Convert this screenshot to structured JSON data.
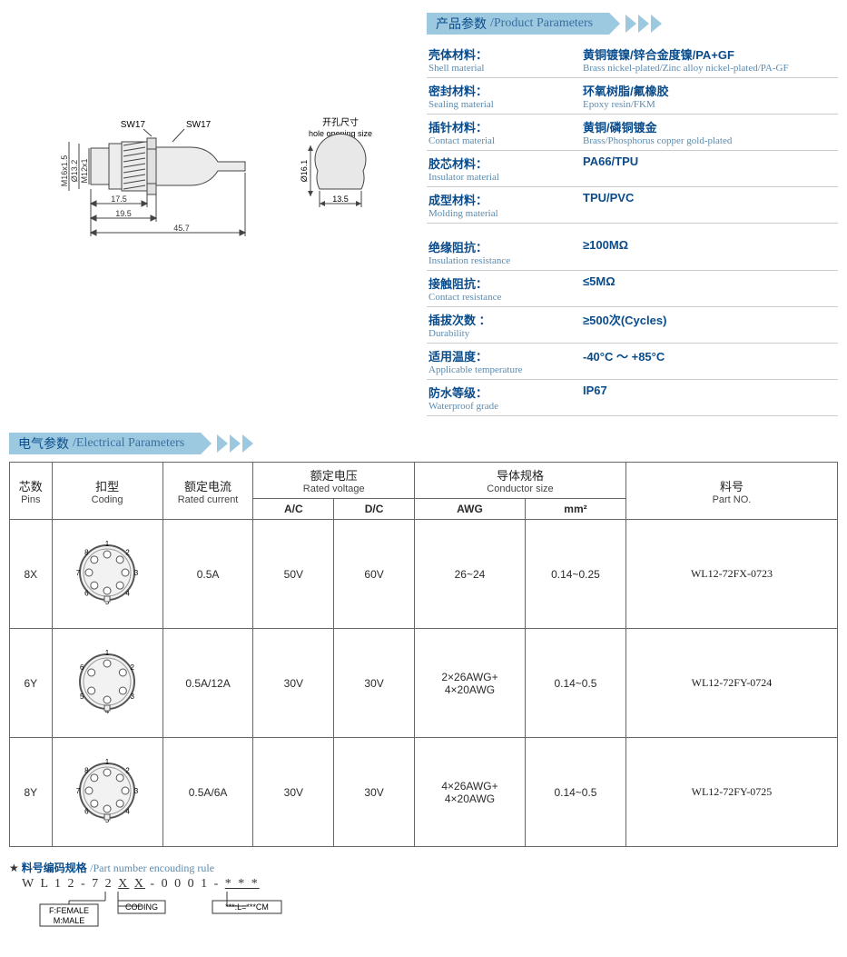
{
  "sections": {
    "product_params": {
      "zh": "产品参数",
      "en": "/Product Parameters"
    },
    "electrical_params": {
      "zh": "电气参数",
      "en": "/Electrical Parameters"
    }
  },
  "drawing": {
    "sw_label": "SW17",
    "hole_label_zh": "开孔尺寸",
    "hole_label_en": "hole opening size",
    "diam_hole": "Ø16.1",
    "hole_base": "13.5",
    "d_m16": "M16x1.5",
    "d_132": "Ø13.2",
    "d_m12": "M12x1",
    "dim_175": "17.5",
    "dim_195": "19.5",
    "dim_457": "45.7"
  },
  "product_rows": [
    {
      "lzh": "壳体材料：",
      "len": "Shell material",
      "vzh": "黄铜镀镍/锌合金度镍/PA+GF",
      "ven": "Brass nickel-plated/Zinc alloy nickel-plated/PA-GF"
    },
    {
      "lzh": "密封材料：",
      "len": "Sealing material",
      "vzh": "环氧树脂/氟橡胶",
      "ven": "Epoxy resin/FKM"
    },
    {
      "lzh": "插针材料：",
      "len": "Contact material",
      "vzh": "黄铜/磷铜镀金",
      "ven": "Brass/Phosphorus copper gold-plated"
    },
    {
      "lzh": "胶芯材料：",
      "len": "Insulator material",
      "vzh": "PA66/TPU",
      "ven": ""
    },
    {
      "lzh": "成型材料：",
      "len": "Molding material",
      "vzh": "TPU/PVC",
      "ven": ""
    }
  ],
  "product_rows2": [
    {
      "lzh": "绝缘阻抗：",
      "len": "Insulation resistance",
      "vzh": "≥100MΩ",
      "ven": ""
    },
    {
      "lzh": "接触阻抗：",
      "len": "Contact resistance",
      "vzh": "≤5MΩ",
      "ven": ""
    },
    {
      "lzh": "插拔次数 ：",
      "len": "Durability",
      "vzh": "≥500次(Cycles)",
      "ven": ""
    },
    {
      "lzh": "适用温度：",
      "len": "Applicable temperature",
      "vzh": "-40°C ～ +85°C",
      "ven": ""
    },
    {
      "lzh": "防水等级：",
      "len": "Waterproof grade",
      "vzh": "IP67",
      "ven": ""
    }
  ],
  "etable": {
    "headers": {
      "pins": {
        "zh": "芯数",
        "en": "Pins"
      },
      "coding": {
        "zh": "扣型",
        "en": "Coding"
      },
      "rated_current": {
        "zh": "额定电流",
        "en": "Rated current"
      },
      "rated_voltage": {
        "zh": "额定电压",
        "en": "Rated voltage"
      },
      "ac": "A/C",
      "dc": "D/C",
      "conductor": {
        "zh": "导体规格",
        "en": "Conductor size"
      },
      "awg": "AWG",
      "mm2": "mm²",
      "partno": {
        "zh": "料号",
        "en": "Part NO."
      }
    },
    "rows": [
      {
        "pins": "8X",
        "pin_count": 8,
        "current": "0.5A",
        "ac": "50V",
        "dc": "60V",
        "awg": "26~24",
        "mm2": "0.14~0.25",
        "pn": "WL12-72FX-0723"
      },
      {
        "pins": "6Y",
        "pin_count": 6,
        "current": "0.5A/12A",
        "ac": "30V",
        "dc": "30V",
        "awg": "2×26AWG+\n4×20AWG",
        "mm2": "0.14~0.5",
        "pn": "WL12-72FY-0724"
      },
      {
        "pins": "8Y",
        "pin_count": 8,
        "current": "0.5A/6A",
        "ac": "30V",
        "dc": "30V",
        "awg": "4×26AWG+\n4×20AWG",
        "mm2": "0.14~0.5",
        "pn": "WL12-72FY-0725"
      }
    ]
  },
  "encoding": {
    "title_zh": "料号编码规格",
    "title_en": "/Part number encouding rule",
    "pattern": "W L 1 2 - 7 2 X X - 0 0 0 1 - * * *",
    "female": "F:FEMALE",
    "male": "M:MALE",
    "coding": "CODING",
    "len": "***:L=***CM"
  }
}
